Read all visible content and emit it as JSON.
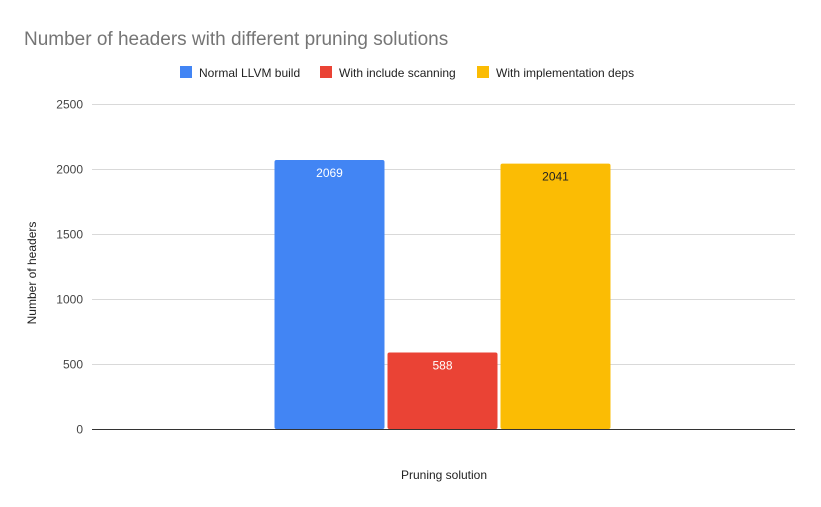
{
  "chart_data": {
    "type": "bar",
    "title": "Number of headers with different pruning solutions",
    "xlabel": "Pruning solution",
    "ylabel": "Number of headers",
    "ylim": [
      0,
      2500
    ],
    "yticks": [
      0,
      500,
      1000,
      1500,
      2000,
      2500
    ],
    "ytick_labels": [
      "0",
      "500",
      "1000",
      "1500",
      "2000",
      "2500"
    ],
    "grid": true,
    "legend_position": "top",
    "categories": [
      ""
    ],
    "series": [
      {
        "name": "Normal LLVM build",
        "values": [
          2069
        ],
        "color": "#4285F4",
        "label_color": "#ffffff",
        "value_label": "2069"
      },
      {
        "name": "With include scanning",
        "values": [
          588
        ],
        "color": "#EA4335",
        "label_color": "#ffffff",
        "value_label": "588"
      },
      {
        "name": "With implementation deps",
        "values": [
          2041
        ],
        "color": "#FBBC04",
        "label_color": "#222222",
        "value_label": "2041"
      }
    ]
  }
}
